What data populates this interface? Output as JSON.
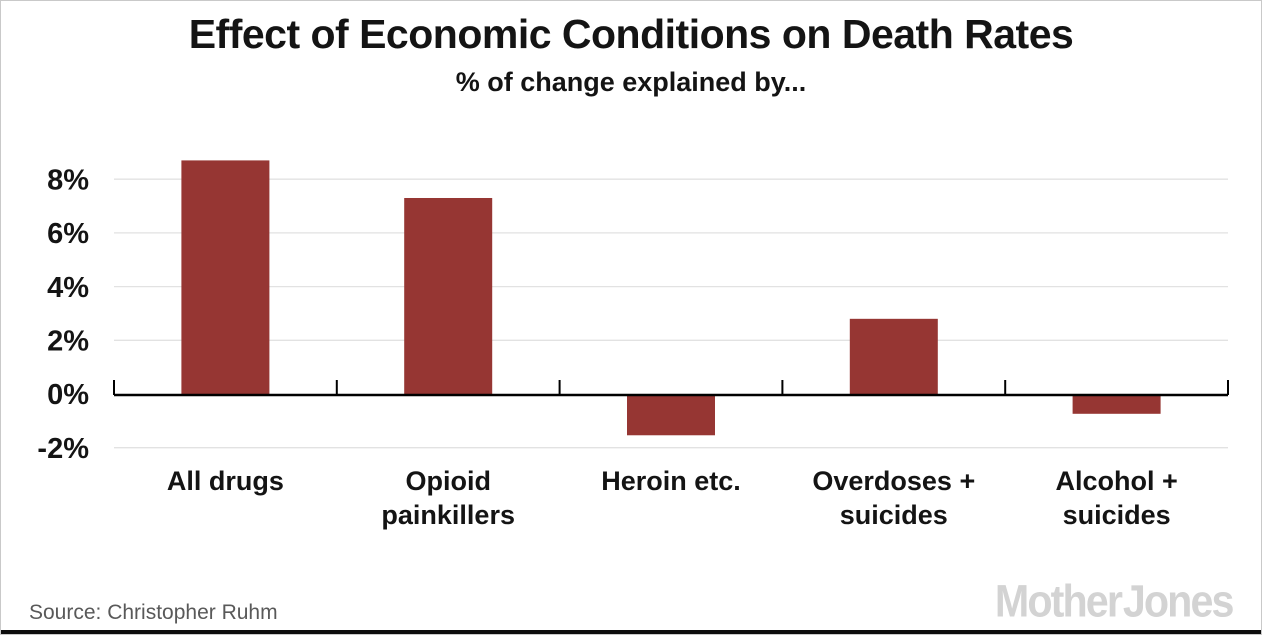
{
  "header": {
    "title": "Effect of Economic Conditions on Death Rates",
    "subtitle": "% of change explained by..."
  },
  "chart_data": {
    "type": "bar",
    "title": "Effect of Economic Conditions on Death Rates",
    "subtitle": "% of change explained by...",
    "categories": [
      "All drugs",
      "Opioid painkillers",
      "Heroin etc.",
      "Overdoses + suicides",
      "Alcohol + suicides"
    ],
    "category_label_lines": [
      [
        "All drugs"
      ],
      [
        "Opioid",
        "painkillers"
      ],
      [
        "Heroin etc."
      ],
      [
        "Overdoses +",
        "suicides"
      ],
      [
        "Alcohol +",
        "suicides"
      ]
    ],
    "values": [
      8.7,
      7.3,
      -1.5,
      2.8,
      -0.7
    ],
    "xlabel": "",
    "ylabel": "% of change explained",
    "ylim": [
      -2.6,
      9.4
    ],
    "yticks": [
      8,
      6,
      4,
      2,
      0,
      -2
    ],
    "ytick_labels": [
      "8%",
      "6%",
      "4%",
      "2%",
      "0%",
      "-2%"
    ],
    "grid": true,
    "legend": "none",
    "bar_color": "#963633",
    "gridline_color": "#e2e2e2",
    "axis_color": "#000000",
    "label_color": "#141414"
  },
  "footer": {
    "source_text": "Source:  Christopher Ruhm",
    "logo_text": "Mother Jones"
  }
}
